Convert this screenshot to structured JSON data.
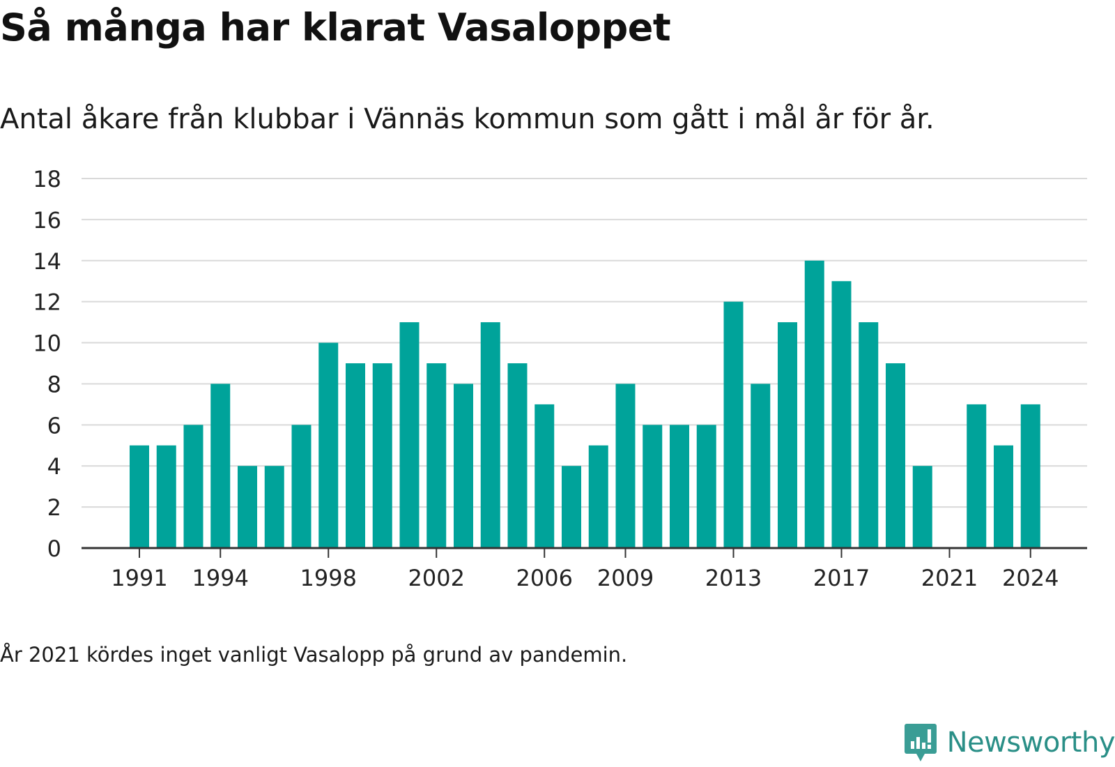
{
  "title": "Så många har klarat Vasaloppet",
  "subtitle": "Antal åkare från klubbar i Vännäs kommun som gått i mål år för år.",
  "note": "År 2021 kördes inget vanligt Vasalopp på grund av pandemin.",
  "brand": {
    "name": "Newsworthy",
    "logo_icon": "chart-speech-bubble-icon"
  },
  "colors": {
    "bar": "#00a39a",
    "grid": "#d9d9d9",
    "axis": "#333333",
    "text": "#222222"
  },
  "chart_data": {
    "type": "bar",
    "title": "Så många har klarat Vasaloppet",
    "subtitle": "Antal åkare från klubbar i Vännäs kommun som gått i mål år för år.",
    "x": [
      1991,
      1992,
      1993,
      1994,
      1995,
      1996,
      1997,
      1998,
      1999,
      2000,
      2001,
      2002,
      2003,
      2004,
      2005,
      2006,
      2007,
      2008,
      2009,
      2010,
      2011,
      2012,
      2013,
      2014,
      2015,
      2016,
      2017,
      2018,
      2019,
      2020,
      2021,
      2022,
      2023,
      2024
    ],
    "values": [
      5,
      5,
      6,
      8,
      4,
      4,
      6,
      10,
      9,
      9,
      11,
      9,
      8,
      11,
      9,
      7,
      4,
      5,
      8,
      6,
      6,
      6,
      12,
      8,
      11,
      14,
      13,
      11,
      9,
      4,
      null,
      7,
      5,
      7
    ],
    "xticks": [
      "1991",
      "1994",
      "1998",
      "2002",
      "2006",
      "2009",
      "2013",
      "2017",
      "2021",
      "2024"
    ],
    "yticks": [
      0,
      2,
      4,
      6,
      8,
      10,
      12,
      14,
      16,
      18
    ],
    "ylim": [
      0,
      18
    ],
    "xlabel": "",
    "ylabel": "",
    "grid": true,
    "legend": "none"
  }
}
